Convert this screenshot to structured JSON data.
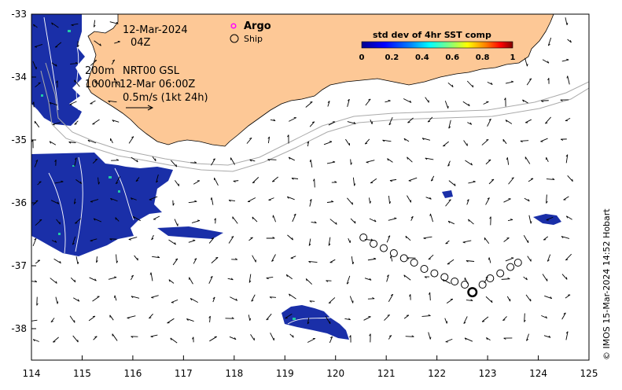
{
  "annotations": {
    "date": "12-Mar-2024",
    "time": "04Z",
    "depth_label": "200m",
    "product_label": "NRT00 GSL",
    "contour_label": "1000m",
    "current_time": "12-Mar 06:00Z",
    "scale_label": "0.5m/s (1kt 24h)"
  },
  "legend": {
    "argo_label": "Argo",
    "ship_label": "Ship",
    "argo_color": "#ff00ff",
    "ship_color": "#000000"
  },
  "colorbar": {
    "title": "std dev of 4hr SST comp",
    "ticks": [
      "0",
      "0.2",
      "0.4",
      "0.6",
      "0.8",
      "1"
    ],
    "colors": [
      "#00008f",
      "#0000ff",
      "#0080ff",
      "#00ffff",
      "#80ff80",
      "#ffff00",
      "#ff8000",
      "#ff0000",
      "#800000"
    ]
  },
  "axes": {
    "x_ticks": [
      "114",
      "115",
      "116",
      "117",
      "118",
      "119",
      "120",
      "121",
      "122",
      "123",
      "124",
      "125"
    ],
    "y_ticks": [
      "-33",
      "-34",
      "-35",
      "-36",
      "-37",
      "-38"
    ],
    "lon_range": [
      114,
      125
    ],
    "lat_range": [
      -38.5,
      -33
    ]
  },
  "credit": "© IMOS 15-Mar-2024 14:52 Hobart",
  "colors": {
    "land": "#fdc896",
    "sst_fill": "#1a2fa8",
    "sst_speck": "#22c9a6",
    "bathymetry": "#aaaaaa"
  },
  "ship_track": [
    {
      "lon": 120.55,
      "lat": -36.55
    },
    {
      "lon": 120.75,
      "lat": -36.65
    },
    {
      "lon": 120.95,
      "lat": -36.72
    },
    {
      "lon": 121.15,
      "lat": -36.8
    },
    {
      "lon": 121.35,
      "lat": -36.88
    },
    {
      "lon": 121.55,
      "lat": -36.95
    },
    {
      "lon": 121.75,
      "lat": -37.05
    },
    {
      "lon": 121.95,
      "lat": -37.12
    },
    {
      "lon": 122.15,
      "lat": -37.18
    },
    {
      "lon": 122.35,
      "lat": -37.25
    },
    {
      "lon": 122.55,
      "lat": -37.3
    },
    {
      "lon": 122.7,
      "lat": -37.42
    },
    {
      "lon": 122.9,
      "lat": -37.3
    },
    {
      "lon": 123.05,
      "lat": -37.2
    },
    {
      "lon": 123.25,
      "lat": -37.12
    },
    {
      "lon": 123.45,
      "lat": -37.02
    },
    {
      "lon": 123.6,
      "lat": -36.95
    }
  ]
}
